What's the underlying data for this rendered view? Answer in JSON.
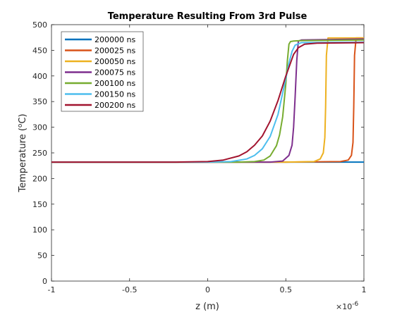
{
  "chart_data": {
    "type": "line",
    "title": "Temperature Resulting From 3rd Pulse",
    "xlabel": "z (m)",
    "ylabel": "Temperature (",
    "ylabel_sup": "o",
    "ylabel_tail": "C)",
    "x_exponent_base": "×10",
    "x_exponent_power": "-6",
    "xlim": [
      -1,
      1
    ],
    "ylim": [
      0,
      500
    ],
    "xticks": [
      -1,
      -0.5,
      0,
      0.5,
      1
    ],
    "xtick_labels": [
      "-1",
      "-0.5",
      "0",
      "0.5",
      "1"
    ],
    "yticks": [
      0,
      50,
      100,
      150,
      200,
      250,
      300,
      350,
      400,
      450,
      500
    ],
    "ytick_labels": [
      "0",
      "50",
      "100",
      "150",
      "200",
      "250",
      "300",
      "350",
      "400",
      "450",
      "500"
    ],
    "grid": false,
    "legend_position": "top-left",
    "series": [
      {
        "name": "200000 ns",
        "color": "#0072BD",
        "x": [
          -1,
          0,
          0.5,
          1
        ],
        "y": [
          232,
          232,
          232,
          232
        ]
      },
      {
        "name": "200025 ns",
        "color": "#D95319",
        "x": [
          -1,
          0,
          0.5,
          0.85,
          0.9,
          0.92,
          0.93,
          0.935,
          0.94,
          0.95,
          1
        ],
        "y": [
          232,
          232,
          232,
          233,
          236,
          245,
          270,
          340,
          440,
          474,
          474
        ]
      },
      {
        "name": "200050 ns",
        "color": "#EDB120",
        "x": [
          -1,
          0,
          0.5,
          0.68,
          0.72,
          0.74,
          0.75,
          0.755,
          0.76,
          0.77,
          1
        ],
        "y": [
          232,
          232,
          232,
          233,
          238,
          250,
          280,
          340,
          440,
          474,
          474
        ]
      },
      {
        "name": "200075 ns",
        "color": "#7E2F8E",
        "x": [
          -1,
          0,
          0.4,
          0.48,
          0.52,
          0.54,
          0.55,
          0.56,
          0.57,
          0.58,
          0.6,
          1
        ],
        "y": [
          232,
          232,
          232,
          234,
          245,
          265,
          300,
          360,
          430,
          468,
          470,
          472
        ]
      },
      {
        "name": "200100 ns",
        "color": "#77AC30",
        "x": [
          -1,
          0,
          0.2,
          0.3,
          0.36,
          0.4,
          0.44,
          0.46,
          0.48,
          0.5,
          0.51,
          0.52,
          0.53,
          0.55,
          0.6,
          1
        ],
        "y": [
          232,
          232,
          232,
          233,
          236,
          244,
          264,
          285,
          320,
          385,
          430,
          462,
          467,
          468,
          469,
          470
        ]
      },
      {
        "name": "200150 ns",
        "color": "#4DBEEE",
        "x": [
          -1,
          0,
          0.15,
          0.25,
          0.3,
          0.35,
          0.4,
          0.45,
          0.5,
          0.52,
          0.54,
          0.56,
          0.6,
          1
        ],
        "y": [
          232,
          232,
          233,
          238,
          245,
          258,
          282,
          325,
          395,
          425,
          448,
          460,
          465,
          466
        ]
      },
      {
        "name": "200200 ns",
        "color": "#A2142F",
        "x": [
          -1,
          -0.2,
          0,
          0.1,
          0.2,
          0.25,
          0.3,
          0.35,
          0.4,
          0.45,
          0.5,
          0.55,
          0.58,
          0.62,
          0.7,
          1
        ],
        "y": [
          232,
          232,
          233,
          236,
          244,
          252,
          265,
          283,
          312,
          352,
          400,
          442,
          455,
          462,
          464,
          465
        ]
      }
    ]
  }
}
